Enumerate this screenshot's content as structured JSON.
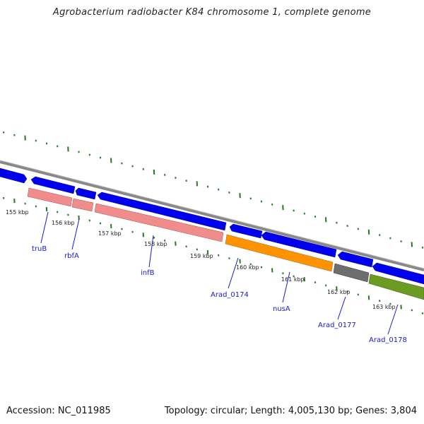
{
  "title": "Agrobacterium radiobacter K84 chromosome 1, complete genome",
  "footer": {
    "accession": "Accession: NC_011985",
    "summary": "Topology: circular; Length: 4,005,130 bp; Genes: 3,804"
  },
  "colors": {
    "backbone": "#8a8a8a",
    "cds": "#0000ee",
    "rrna_pink": "#f08c8c",
    "orange": "#ff9200",
    "gray": "#6e6e6e",
    "olive": "#6b9b23",
    "gc_ticks": "#1e7d1e",
    "label": "#1a1acc"
  },
  "ticks": [
    "155 kbp",
    "156 kbp",
    "157 kbp",
    "158 kbp",
    "159 kbp",
    "160 kbp",
    "161 kbp",
    "162 kbp",
    "163 kbp"
  ],
  "gene_labels": [
    "truB",
    "rbfA",
    "infB",
    "Arad_0174",
    "nusA",
    "Arad_0177",
    "Arad_0178"
  ]
}
